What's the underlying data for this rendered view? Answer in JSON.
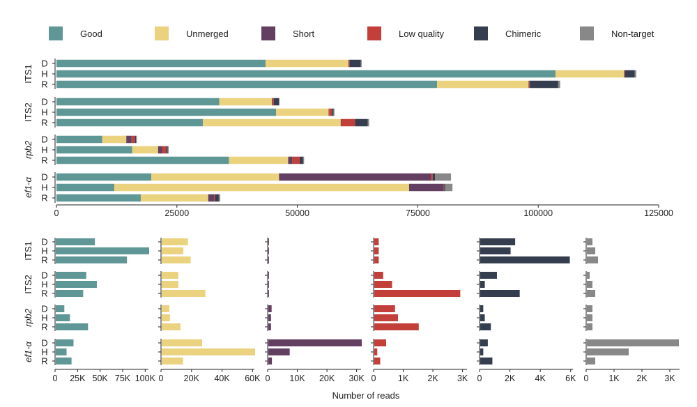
{
  "colors": {
    "Good": "#5f9696",
    "Unmerged": "#ead27f",
    "Short": "#633f62",
    "Low quality": "#c23f3a",
    "Chimeric": "#353e4f",
    "Non-target": "#888888"
  },
  "chart_data": [
    {
      "id": "stacked",
      "type": "bar",
      "orientation": "horizontal",
      "stacked": true,
      "legend": [
        "Good",
        "Unmerged",
        "Short",
        "Low quality",
        "Chimeric",
        "Non-target"
      ],
      "xlim": [
        0,
        125000
      ],
      "xticks": [
        0,
        25000,
        50000,
        75000,
        100000,
        125000
      ],
      "xtick_labels": [
        "0",
        "25000",
        "50000",
        "75000",
        "100000",
        "125000"
      ],
      "groups": [
        {
          "name": "ITS1",
          "italic": false,
          "rows": [
            {
              "label": "D",
              "values": [
                43400,
                17200,
                100,
                150,
                2300,
                200
              ]
            },
            {
              "label": "H",
              "values": [
                103600,
                14200,
                100,
                150,
                2000,
                300
              ]
            },
            {
              "label": "R",
              "values": [
                79000,
                19000,
                100,
                150,
                5900,
                400
              ]
            }
          ]
        },
        {
          "name": "ITS2",
          "italic": false,
          "rows": [
            {
              "label": "D",
              "values": [
                33800,
                10900,
                100,
                300,
                1100,
                100
              ]
            },
            {
              "label": "H",
              "values": [
                45600,
                10900,
                100,
                600,
                300,
                200
              ]
            },
            {
              "label": "R",
              "values": [
                30400,
                28600,
                100,
                2900,
                2600,
                300
              ]
            }
          ]
        },
        {
          "name": "rpb2",
          "italic": true,
          "rows": [
            {
              "label": "D",
              "values": [
                9500,
                5000,
                1100,
                700,
                200,
                200
              ]
            },
            {
              "label": "H",
              "values": [
                15700,
                5400,
                900,
                800,
                300,
                200
              ]
            },
            {
              "label": "R",
              "values": [
                35800,
                12300,
                900,
                1500,
                700,
                200
              ]
            }
          ]
        },
        {
          "name": "ef1-α",
          "italic": true,
          "rows": [
            {
              "label": "D",
              "values": [
                19700,
                26500,
                31500,
                400,
                500,
                3300
              ]
            },
            {
              "label": "H",
              "values": [
                12000,
                61200,
                7200,
                100,
                200,
                1500
              ]
            },
            {
              "label": "R",
              "values": [
                17500,
                14000,
                1200,
                200,
                800,
                300
              ]
            }
          ]
        }
      ]
    },
    {
      "id": "facets",
      "type": "bar",
      "orientation": "horizontal",
      "xlabel": "Number of reads",
      "panels": [
        {
          "category": "Good",
          "xlim": [
            0,
            103600
          ],
          "ticks": [
            0,
            25000,
            50000,
            75000,
            100000
          ],
          "tick_labels": [
            "0",
            "25K",
            "50K",
            "75K",
            "100K"
          ]
        },
        {
          "category": "Unmerged",
          "xlim": [
            0,
            61200
          ],
          "ticks": [
            0,
            20000,
            40000,
            60000
          ],
          "tick_labels": [
            "0",
            "20K",
            "40K",
            "60K"
          ]
        },
        {
          "category": "Short",
          "xlim": [
            0,
            31500
          ],
          "ticks": [
            0,
            10000,
            20000,
            30000
          ],
          "tick_labels": [
            "0",
            "10K",
            "20K",
            "30K"
          ]
        },
        {
          "category": "Low quality",
          "xlim": [
            0,
            3150
          ],
          "ticks": [
            0,
            1000,
            2000,
            3000
          ],
          "tick_labels": [
            "0",
            "1K",
            "2K",
            "3K"
          ]
        },
        {
          "category": "Chimeric",
          "xlim": [
            0,
            6150
          ],
          "ticks": [
            0,
            2000,
            4000,
            6000
          ],
          "tick_labels": [
            "0",
            "2K",
            "4K",
            "6K"
          ]
        },
        {
          "category": "Non-target",
          "xlim": [
            0,
            3350
          ],
          "ticks": [
            0,
            1000,
            2000,
            3000
          ],
          "tick_labels": [
            "0",
            "1K",
            "2K",
            "3K"
          ]
        }
      ]
    }
  ]
}
